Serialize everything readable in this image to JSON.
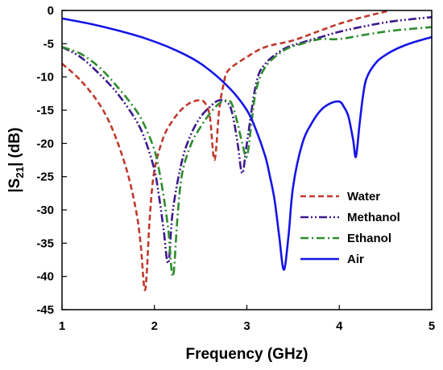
{
  "chart_data": {
    "type": "line",
    "xlabel": "Frequency (GHz)",
    "ylabel": "|S21| (dB)",
    "ylabel_parts": {
      "pre": "|S",
      "sub": "21",
      "post": "| (dB)"
    },
    "xlim": [
      1,
      5
    ],
    "ylim": [
      -45,
      0
    ],
    "xticks": [
      1,
      2,
      3,
      4,
      5
    ],
    "yticks": [
      0,
      -5,
      -10,
      -15,
      -20,
      -25,
      -30,
      -35,
      -40,
      -45
    ],
    "grid": false,
    "legend": "center-right",
    "series": [
      {
        "name": "Water",
        "color": "#c0392b",
        "dash": "dashed",
        "x": [
          1.0,
          1.2,
          1.4,
          1.55,
          1.7,
          1.8,
          1.85,
          1.9,
          1.95,
          2.0,
          2.1,
          2.2,
          2.3,
          2.4,
          2.5,
          2.55,
          2.6,
          2.65,
          2.7,
          2.75,
          2.8,
          3.0,
          3.2,
          3.5,
          3.8,
          4.0,
          4.2,
          4.4,
          4.55
        ],
        "y": [
          -8.0,
          -10.5,
          -14.0,
          -18.0,
          -24.0,
          -30.0,
          -35.0,
          -42.0,
          -31.0,
          -24.0,
          -19.0,
          -16.5,
          -14.8,
          -13.8,
          -13.5,
          -14.0,
          -16.0,
          -22.5,
          -15.0,
          -11.0,
          -9.0,
          -7.0,
          -5.5,
          -4.5,
          -3.0,
          -2.0,
          -1.2,
          -0.5,
          0.0
        ]
      },
      {
        "name": "Methanol",
        "color": "#3d1a8c",
        "dash": "dash-dot-dot",
        "x": [
          1.0,
          1.2,
          1.4,
          1.6,
          1.8,
          1.9,
          2.0,
          2.05,
          2.1,
          2.15,
          2.2,
          2.3,
          2.4,
          2.5,
          2.6,
          2.7,
          2.8,
          2.85,
          2.9,
          2.95,
          3.0,
          3.1,
          3.2,
          3.4,
          3.6,
          3.8,
          4.0,
          4.3,
          4.6,
          5.0
        ],
        "y": [
          -5.5,
          -7.0,
          -9.5,
          -12.5,
          -16.5,
          -19.5,
          -24.0,
          -28.0,
          -33.0,
          -38.0,
          -30.0,
          -22.5,
          -18.5,
          -16.0,
          -14.5,
          -13.5,
          -14.0,
          -16.0,
          -20.0,
          -24.5,
          -20.0,
          -11.0,
          -8.0,
          -5.8,
          -4.8,
          -4.0,
          -3.2,
          -2.3,
          -1.6,
          -1.0
        ]
      },
      {
        "name": "Ethanol",
        "color": "#2e8b2e",
        "dash": "dash-dot",
        "x": [
          1.0,
          1.2,
          1.4,
          1.6,
          1.8,
          1.9,
          2.0,
          2.05,
          2.1,
          2.15,
          2.2,
          2.25,
          2.3,
          2.4,
          2.5,
          2.6,
          2.7,
          2.8,
          2.85,
          2.9,
          2.95,
          3.0,
          3.05,
          3.1,
          3.2,
          3.4,
          3.6,
          3.8,
          4.0,
          4.3,
          4.6,
          5.0
        ],
        "y": [
          -5.5,
          -6.5,
          -8.5,
          -11.5,
          -15.0,
          -17.5,
          -21.0,
          -24.0,
          -28.0,
          -33.0,
          -40.0,
          -31.0,
          -24.5,
          -20.0,
          -17.5,
          -15.5,
          -14.0,
          -13.5,
          -14.5,
          -17.0,
          -20.0,
          -22.0,
          -17.0,
          -12.0,
          -8.5,
          -6.0,
          -5.0,
          -4.3,
          -4.3,
          -3.6,
          -3.0,
          -2.5
        ]
      },
      {
        "name": "Air",
        "color": "#1515e6",
        "dash": "solid",
        "x": [
          1.0,
          1.3,
          1.6,
          1.9,
          2.2,
          2.5,
          2.8,
          3.0,
          3.1,
          3.2,
          3.25,
          3.3,
          3.35,
          3.4,
          3.45,
          3.5,
          3.6,
          3.7,
          3.8,
          3.9,
          4.0,
          4.05,
          4.1,
          4.15,
          4.18,
          4.22,
          4.26,
          4.3,
          4.4,
          4.5,
          4.6,
          4.7,
          4.8,
          5.0
        ],
        "y": [
          -1.2,
          -2.0,
          -3.0,
          -4.2,
          -5.8,
          -8.0,
          -11.5,
          -15.0,
          -18.0,
          -22.0,
          -25.0,
          -28.5,
          -34.0,
          -39.0,
          -34.0,
          -26.5,
          -20.0,
          -17.0,
          -15.0,
          -14.0,
          -13.7,
          -14.5,
          -16.0,
          -19.5,
          -22.0,
          -17.0,
          -12.5,
          -10.0,
          -7.8,
          -6.7,
          -5.9,
          -5.3,
          -4.8,
          -4.0
        ]
      }
    ]
  }
}
